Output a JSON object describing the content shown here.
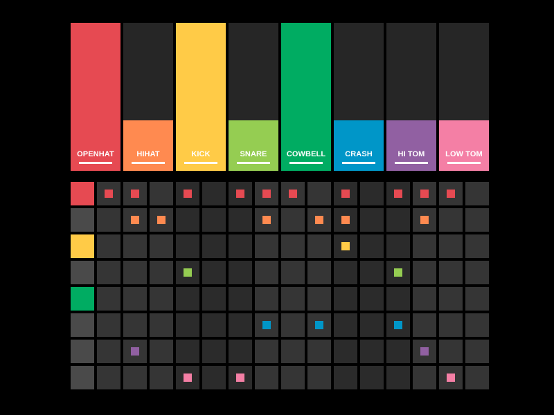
{
  "instruments": [
    {
      "id": "openhat",
      "label": "OPENHAT",
      "color": "#e64a52",
      "level": 1.0,
      "row_active": true,
      "steps": [
        1,
        1,
        0,
        1,
        0,
        1,
        1,
        1,
        0,
        1,
        0,
        1,
        1,
        1,
        0
      ]
    },
    {
      "id": "hihat",
      "label": "HIHAT",
      "color": "#ff8a50",
      "level": 0.34,
      "row_active": false,
      "steps": [
        0,
        1,
        1,
        0,
        0,
        0,
        1,
        0,
        1,
        1,
        0,
        0,
        1,
        0,
        0
      ]
    },
    {
      "id": "kick",
      "label": "KICK",
      "color": "#ffcb47",
      "level": 1.0,
      "row_active": true,
      "steps": [
        0,
        0,
        0,
        0,
        0,
        0,
        0,
        0,
        0,
        1,
        0,
        0,
        0,
        0,
        0
      ]
    },
    {
      "id": "snare",
      "label": "SNARE",
      "color": "#95cd52",
      "level": 0.34,
      "row_active": false,
      "steps": [
        0,
        0,
        0,
        1,
        0,
        0,
        0,
        0,
        0,
        0,
        0,
        1,
        0,
        0,
        0
      ]
    },
    {
      "id": "cowbell",
      "label": "COWBELL",
      "color": "#00ac62",
      "level": 1.0,
      "row_active": true,
      "steps": [
        0,
        0,
        0,
        0,
        0,
        0,
        0,
        0,
        0,
        0,
        0,
        0,
        0,
        0,
        0
      ]
    },
    {
      "id": "crash",
      "label": "CRASH",
      "color": "#0096c8",
      "level": 0.34,
      "row_active": false,
      "steps": [
        0,
        0,
        0,
        0,
        0,
        0,
        1,
        0,
        1,
        0,
        0,
        1,
        0,
        0,
        0
      ]
    },
    {
      "id": "hi-tom",
      "label": "HI TOM",
      "color": "#9160a2",
      "level": 0.34,
      "row_active": false,
      "steps": [
        0,
        1,
        0,
        0,
        0,
        0,
        0,
        0,
        0,
        0,
        0,
        0,
        1,
        0,
        0
      ]
    },
    {
      "id": "low-tom",
      "label": "LOW TOM",
      "color": "#f47fa5",
      "level": 0.34,
      "row_active": false,
      "steps": [
        0,
        0,
        0,
        1,
        0,
        1,
        0,
        0,
        0,
        0,
        0,
        0,
        0,
        1,
        0
      ]
    }
  ],
  "colors": {
    "background": "#000000",
    "pad_empty": "#262626",
    "row_selector_inactive": "#4a4a4a",
    "cell_dark": "#2b2b2b",
    "cell_light": "#353535"
  }
}
